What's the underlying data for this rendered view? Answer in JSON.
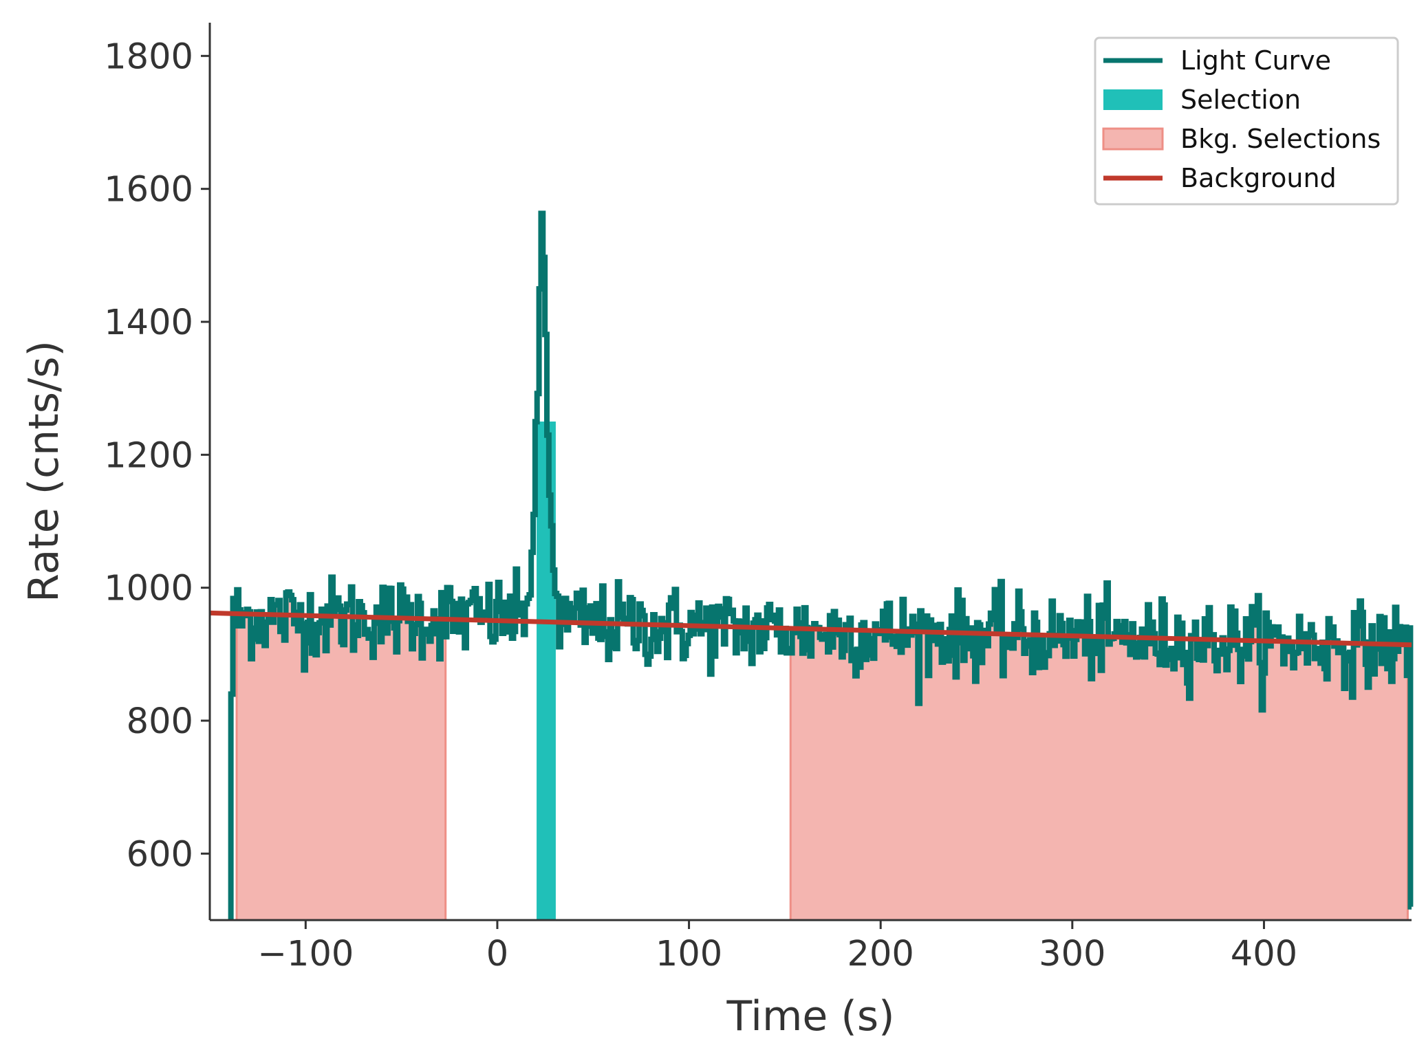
{
  "chart_data": {
    "type": "line",
    "title": "",
    "xlabel": "Time (s)",
    "ylabel": "Rate (cnts/s)",
    "xlim": [
      -150,
      477
    ],
    "ylim": [
      500,
      1850
    ],
    "xticks": [
      -100,
      0,
      100,
      200,
      300,
      400
    ],
    "xtick_labels": [
      "−100",
      "0",
      "100",
      "200",
      "300",
      "400"
    ],
    "yticks": [
      600,
      800,
      1000,
      1200,
      1400,
      1600,
      1800
    ],
    "ytick_labels": [
      "600",
      "800",
      "1000",
      "1200",
      "1400",
      "1600",
      "1800"
    ],
    "grid": false,
    "legend_position": "top-right",
    "legend": [
      "Light Curve",
      "Selection",
      "Bkg. Selections",
      "Background"
    ],
    "series": [
      {
        "name": "Light Curve",
        "type": "step",
        "color": "#07756e",
        "x_start": -139,
        "x_end": 477,
        "bin_width": 1.024,
        "baseline_points": [
          [
            -139,
            955
          ],
          [
            0,
            955
          ],
          [
            50,
            945
          ],
          [
            100,
            940
          ],
          [
            150,
            935
          ],
          [
            200,
            932
          ],
          [
            300,
            925
          ],
          [
            400,
            918
          ],
          [
            477,
            912
          ]
        ],
        "noise_sigma": 30,
        "edge_values": {
          "first_bin": 840,
          "last_bin": 520
        },
        "peak": [
          [
            14,
            960
          ],
          [
            17,
            1010
          ],
          [
            19,
            1090
          ],
          [
            20,
            1200
          ],
          [
            21,
            1280
          ],
          [
            22,
            1380
          ],
          [
            23,
            1500
          ],
          [
            24,
            1540
          ],
          [
            25,
            1450
          ],
          [
            26,
            1250
          ],
          [
            27,
            1170
          ],
          [
            28,
            1100
          ],
          [
            29,
            1050
          ],
          [
            30,
            1020
          ],
          [
            32,
            990
          ]
        ]
      },
      {
        "name": "Selection",
        "type": "span",
        "color": "#20c0b8",
        "x_range": [
          20.5,
          30.5
        ]
      },
      {
        "name": "Bkg. Selections",
        "type": "filled-under-curve",
        "color": "#f4b5b0",
        "edge_color": "#ee8f86",
        "x_ranges": [
          [
            -136,
            -27
          ],
          [
            153,
            475
          ]
        ]
      },
      {
        "name": "Background",
        "type": "line",
        "color": "#c0392b",
        "x": [
          -150,
          477
        ],
        "y": [
          962,
          914
        ]
      }
    ]
  }
}
